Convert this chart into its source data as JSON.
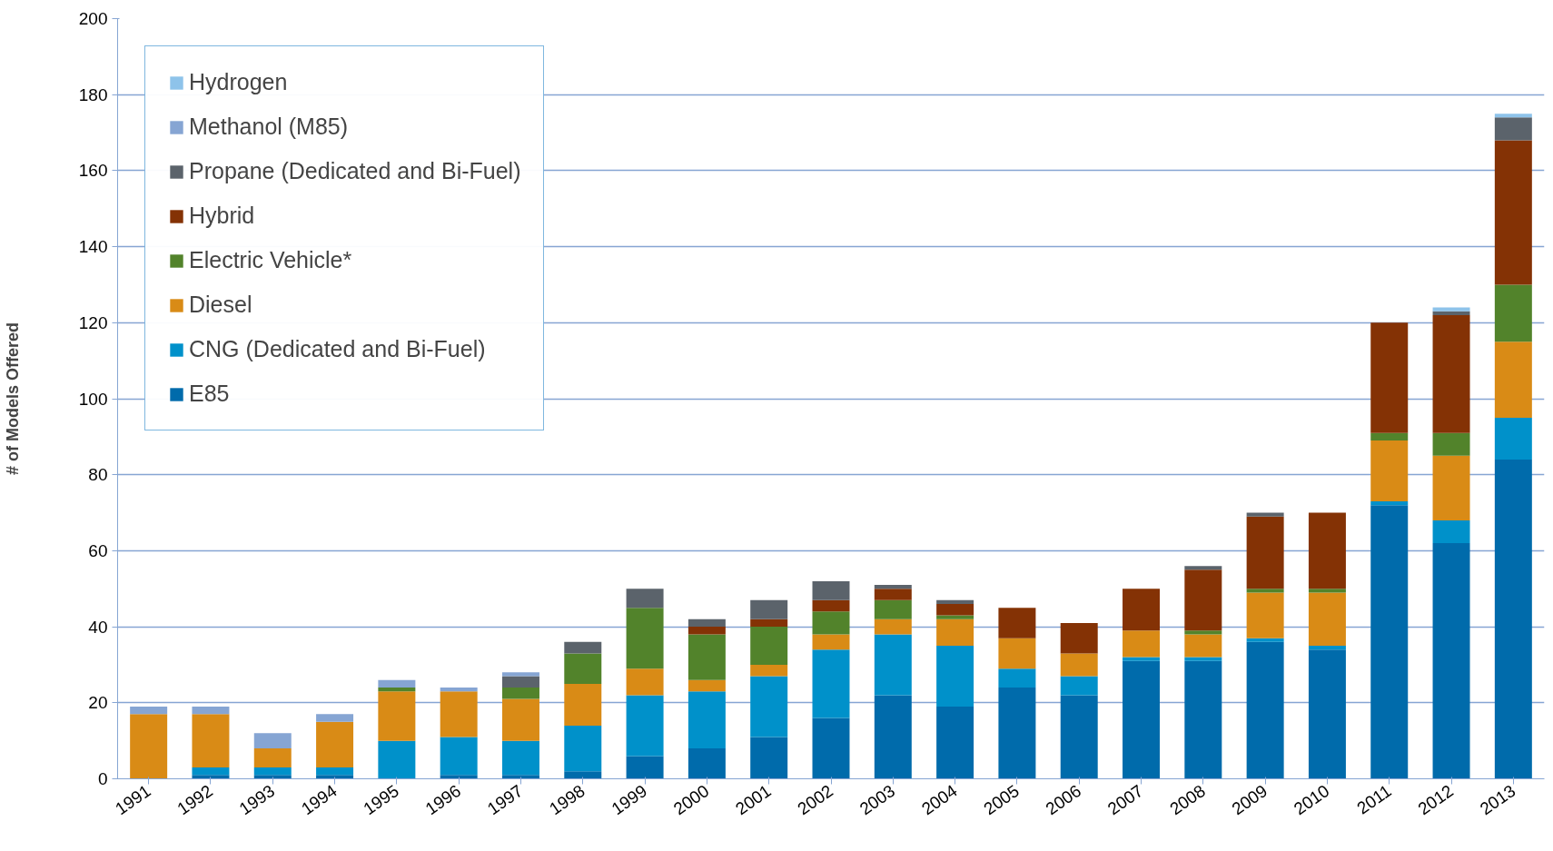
{
  "chart_data": {
    "type": "bar",
    "stacked": true,
    "ylabel": "# of Models Offered",
    "categories": [
      "1991",
      "1992",
      "1993",
      "1994",
      "1995",
      "1996",
      "1997",
      "1998",
      "1999",
      "2000",
      "2001",
      "2002",
      "2003",
      "2004",
      "2005",
      "2006",
      "2007",
      "2008",
      "2009",
      "2010",
      "2011",
      "2012",
      "2013"
    ],
    "series": [
      {
        "name": "E85",
        "color": "#006bab",
        "values": [
          0,
          1,
          1,
          1,
          0,
          1,
          1,
          2,
          6,
          8,
          11,
          16,
          22,
          19,
          24,
          22,
          31,
          31,
          36,
          34,
          72,
          62,
          84
        ]
      },
      {
        "name": "CNG (Dedicated and Bi-Fuel)",
        "color": "#0091ca",
        "values": [
          0,
          2,
          2,
          2,
          10,
          10,
          9,
          12,
          16,
          15,
          16,
          18,
          16,
          16,
          5,
          5,
          1,
          1,
          1,
          1,
          1,
          6,
          11
        ]
      },
      {
        "name": "Diesel",
        "color": "#d98b16",
        "values": [
          17,
          14,
          5,
          12,
          13,
          12,
          11,
          11,
          7,
          3,
          3,
          4,
          4,
          7,
          8,
          6,
          7,
          6,
          12,
          14,
          16,
          17,
          20
        ]
      },
      {
        "name": "Electric Vehicle*",
        "color": "#52832b",
        "values": [
          0,
          0,
          0,
          0,
          1,
          0,
          3,
          8,
          16,
          12,
          10,
          6,
          5,
          1,
          0,
          0,
          0,
          1,
          1,
          1,
          2,
          6,
          15
        ]
      },
      {
        "name": "Hybrid",
        "color": "#843205",
        "values": [
          0,
          0,
          0,
          0,
          0,
          0,
          0,
          0,
          0,
          2,
          2,
          3,
          3,
          3,
          8,
          8,
          11,
          16,
          19,
          20,
          29,
          31,
          38
        ]
      },
      {
        "name": "Propane (Dedicated and Bi-Fuel)",
        "color": "#5b636b",
        "values": [
          0,
          0,
          0,
          0,
          0,
          0,
          3,
          3,
          5,
          2,
          5,
          5,
          1,
          1,
          0,
          0,
          0,
          1,
          1,
          0,
          0,
          1,
          6
        ]
      },
      {
        "name": "Methanol (M85)",
        "color": "#86a5d3",
        "values": [
          2,
          2,
          4,
          2,
          2,
          1,
          1,
          0,
          0,
          0,
          0,
          0,
          0,
          0,
          0,
          0,
          0,
          0,
          0,
          0,
          0,
          0,
          0
        ]
      },
      {
        "name": "Hydrogen",
        "color": "#8ec3ea",
        "values": [
          0,
          0,
          0,
          0,
          0,
          0,
          0,
          0,
          0,
          0,
          0,
          0,
          0,
          0,
          0,
          0,
          0,
          0,
          0,
          0,
          0,
          1,
          1
        ]
      }
    ],
    "ylim": [
      0,
      200
    ],
    "yticks": [
      0,
      20,
      40,
      60,
      80,
      100,
      120,
      140,
      160,
      180,
      200
    ],
    "grid": "y",
    "legend": "top left"
  }
}
